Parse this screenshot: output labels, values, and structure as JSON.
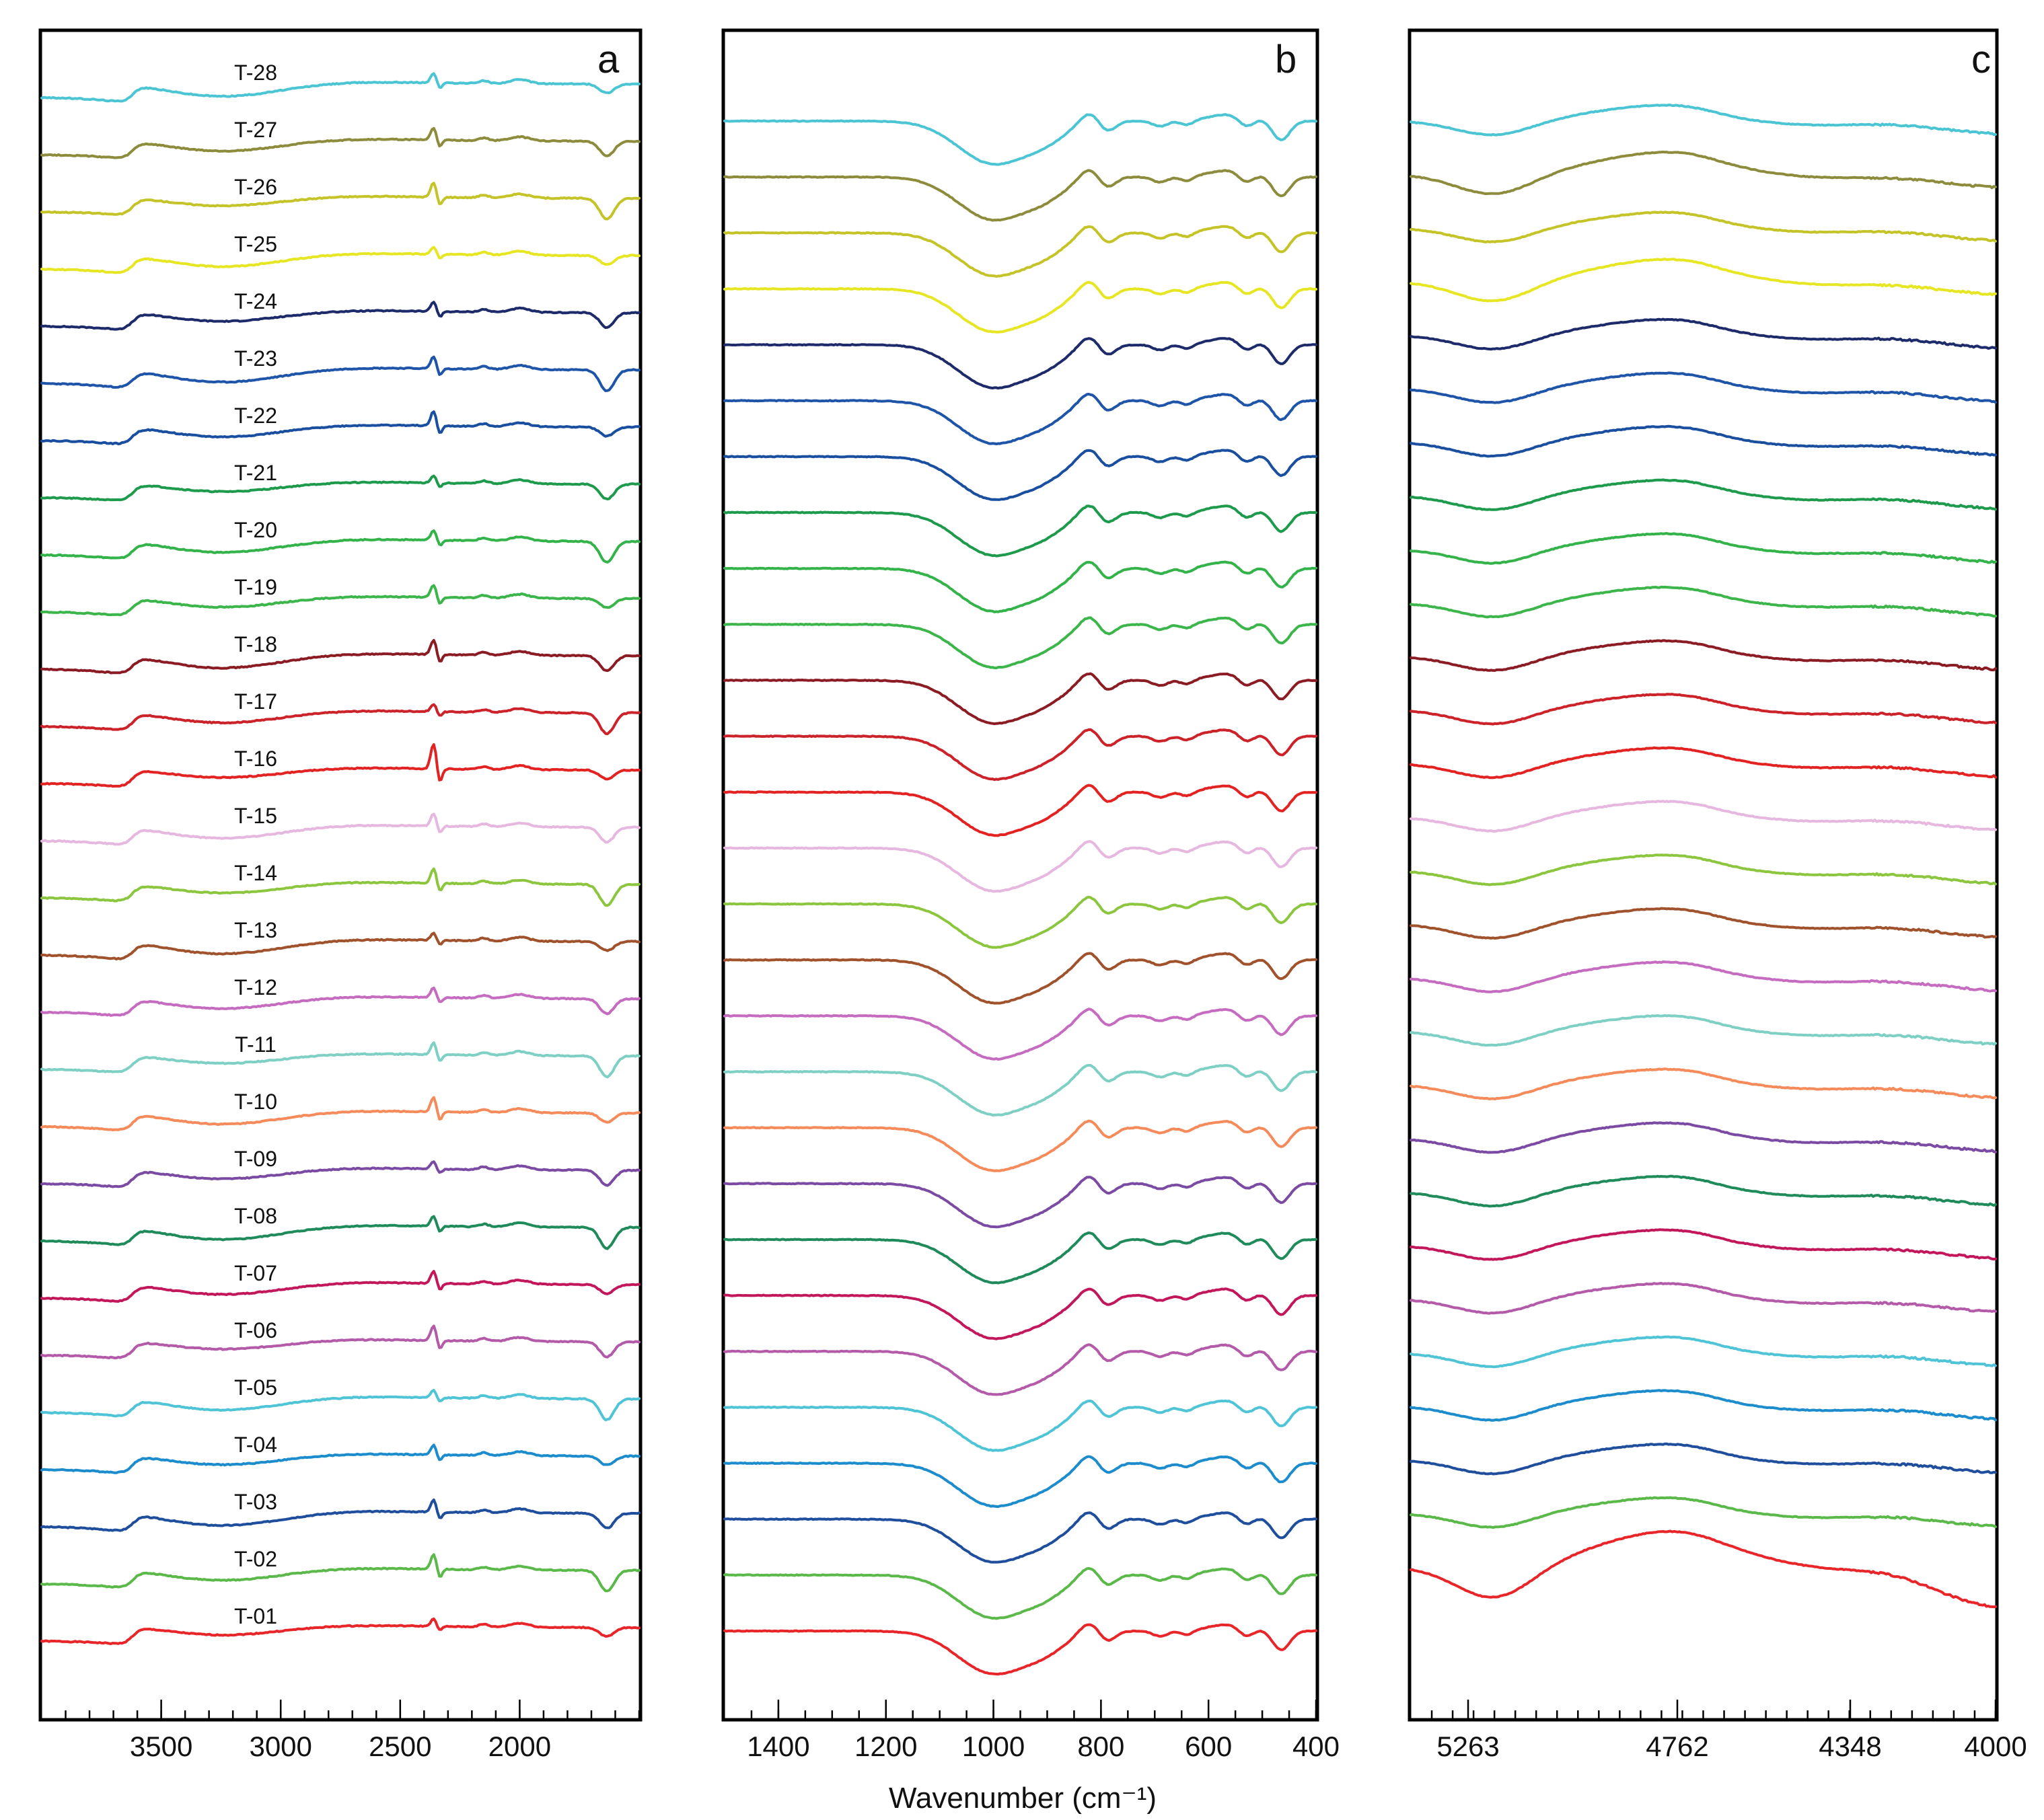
{
  "chart_data": {
    "type": "line",
    "figure_kind": "stacked FTIR spectra, three panels",
    "xlabel": "Wavenumber (cm⁻¹)",
    "samples": [
      "T-01",
      "T-02",
      "T-03",
      "T-04",
      "T-05",
      "T-06",
      "T-07",
      "T-08",
      "T-09",
      "T-10",
      "T-11",
      "T-12",
      "T-13",
      "T-14",
      "T-15",
      "T-16",
      "T-17",
      "T-18",
      "T-19",
      "T-20",
      "T-21",
      "T-22",
      "T-23",
      "T-24",
      "T-25",
      "T-26",
      "T-27",
      "T-28"
    ],
    "colors": [
      "#e8262a",
      "#5bb94a",
      "#1f4e9c",
      "#1c8ccc",
      "#4fc4d6",
      "#b35aa8",
      "#c2185b",
      "#1f8a5a",
      "#7b4ba3",
      "#f58a5a",
      "#7ecfc4",
      "#c56cc0",
      "#a0522d",
      "#8cc63f",
      "#e6b8e0",
      "#e32222",
      "#cc2229",
      "#8b1c24",
      "#3cb54a",
      "#34b34a",
      "#1e9a4c",
      "#1a4fa0",
      "#1f55a8",
      "#1d2b6b",
      "#e6e623",
      "#c4c428",
      "#8c8c3c",
      "#4bc5d3"
    ],
    "panels": [
      {
        "id": "a",
        "letter": "a",
        "x_range": [
          4000,
          1500
        ],
        "tick_labels": [
          "3500",
          "3000",
          "2500",
          "2000"
        ],
        "tick_values": [
          3500,
          3000,
          2500,
          2000
        ],
        "minor_tick_step": 100,
        "sample_labels": [
          "T-01",
          "T-02",
          "T-03",
          "T-04",
          "T-05",
          "T-06",
          "T-07",
          "T-08",
          "T-09",
          "T-10",
          "T-11",
          "T-12",
          "T-13",
          "T-14",
          "T-15",
          "T-16",
          "T-17",
          "T-18",
          "T-19",
          "T-20",
          "T-21",
          "T-22",
          "T-23",
          "T-24",
          "T-25",
          "T-26",
          "T-27",
          "T-28"
        ],
        "features_note": "OH stretching bands 3700-3400, broad water band ~3250, CO2 artefact ~2350, H2O bending ~1630"
      },
      {
        "id": "b",
        "letter": "b",
        "x_range": [
          1500,
          400
        ],
        "tick_labels": [
          "1400",
          "1200",
          "1000",
          "800",
          "600",
          "400"
        ],
        "tick_values": [
          1400,
          1200,
          1000,
          800,
          600,
          400
        ],
        "minor_tick_step": 50,
        "features_note": "Si-O stretch minimum ~1000, bands ~790, ~690, ~530, ~460"
      },
      {
        "id": "c",
        "letter": "c",
        "x_range": [
          5400,
          4000
        ],
        "tick_labels": [
          "5263",
          "4762",
          "4348",
          "4000"
        ],
        "tick_values": [
          5263,
          4762,
          4348,
          4000
        ],
        "minor_tick_step": 50,
        "features_note": "combination bands ~5200 and ~4500 (near-infrared)"
      }
    ]
  }
}
